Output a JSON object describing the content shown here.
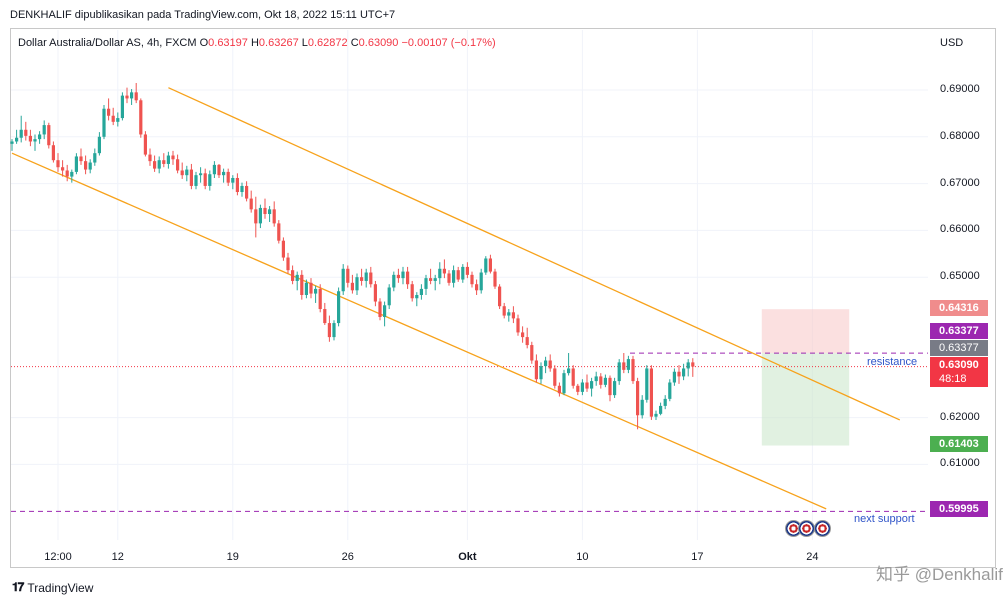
{
  "header": {
    "publish_line": "DENKHALIF dipublikasikan pada TradingView.com, Okt 18, 2022 15:11 UTC+7"
  },
  "legend": {
    "symbol": "Dollar Australia/Dollar AS, 4h, FXCM",
    "o_label": "O",
    "o_value": "0.63197",
    "h_label": "H",
    "h_value": "0.63267",
    "l_label": "L",
    "l_value": "0.62872",
    "c_label": "C",
    "c_value": "0.63090",
    "change": "−0.00107 (−0.17%)"
  },
  "axis": {
    "currency": "USD"
  },
  "annotations": {
    "resistance": "resistance",
    "next_support": "next support"
  },
  "price_tags": {
    "take_profit_top": "0.64316",
    "resistance_tag": "0.63377",
    "resistance_gray": "0.63377",
    "last_price": "0.63090",
    "countdown": "48:18",
    "stop_bottom": "0.61403",
    "support": "0.59995"
  },
  "footer": {
    "brand": "TradingView",
    "watermark": "知乎 @Denkhalif"
  },
  "colors": {
    "up": "#26a69a",
    "down": "#ef5350",
    "channel": "#f7a21b",
    "dashed_purple": "#9c27b0",
    "last_price": "#f23645"
  },
  "chart_data": {
    "type": "candlestick",
    "title": "Dollar Australia/Dollar AS, 4h, FXCM",
    "ylabel": "USD",
    "ylim": [
      0.596,
      0.6985
    ],
    "y_ticks": [
      "0.69000",
      "0.68000",
      "0.67000",
      "0.66000",
      "0.65000",
      "0.62000",
      "0.61000"
    ],
    "x_ticks": [
      "12:00",
      "12",
      "19",
      "26",
      "Okt",
      "10",
      "17",
      "24"
    ],
    "x_tick_index": [
      10,
      23,
      48,
      73,
      99,
      124,
      149,
      174
    ],
    "levels": {
      "resistance": 0.63377,
      "support": 0.59995,
      "last": 0.6309,
      "tp_top": 0.64316,
      "sl_bottom": 0.61403
    },
    "channel_upper": [
      [
        34,
        0.6905
      ],
      [
        193,
        0.6195
      ]
    ],
    "channel_lower": [
      [
        0,
        0.6765
      ],
      [
        177,
        0.6005
      ]
    ],
    "position_box": {
      "x_start": 163,
      "x_end": 182
    },
    "candles": [
      [
        0.6785,
        0.6795,
        0.677,
        0.679
      ],
      [
        0.679,
        0.6815,
        0.6785,
        0.6798
      ],
      [
        0.6798,
        0.6845,
        0.6788,
        0.6815
      ],
      [
        0.6815,
        0.6832,
        0.6792,
        0.6802
      ],
      [
        0.6802,
        0.6815,
        0.678,
        0.679
      ],
      [
        0.679,
        0.6805,
        0.677,
        0.6795
      ],
      [
        0.6795,
        0.6812,
        0.6785,
        0.6805
      ],
      [
        0.6805,
        0.6835,
        0.6795,
        0.6825
      ],
      [
        0.6825,
        0.683,
        0.6775,
        0.6782
      ],
      [
        0.6782,
        0.679,
        0.6745,
        0.675
      ],
      [
        0.675,
        0.6765,
        0.6725,
        0.6735
      ],
      [
        0.6735,
        0.675,
        0.6715,
        0.6728
      ],
      [
        0.6728,
        0.674,
        0.6705,
        0.6715
      ],
      [
        0.6715,
        0.673,
        0.6702,
        0.6725
      ],
      [
        0.6725,
        0.6765,
        0.672,
        0.6758
      ],
      [
        0.6758,
        0.6775,
        0.674,
        0.6748
      ],
      [
        0.6748,
        0.676,
        0.672,
        0.673
      ],
      [
        0.673,
        0.6752,
        0.6722,
        0.6745
      ],
      [
        0.6745,
        0.6775,
        0.6738,
        0.6765
      ],
      [
        0.6765,
        0.681,
        0.676,
        0.68
      ],
      [
        0.68,
        0.6868,
        0.6795,
        0.686
      ],
      [
        0.686,
        0.6882,
        0.6835,
        0.6845
      ],
      [
        0.6845,
        0.6862,
        0.6825,
        0.6832
      ],
      [
        0.6832,
        0.6852,
        0.6822,
        0.684
      ],
      [
        0.684,
        0.6895,
        0.6835,
        0.6888
      ],
      [
        0.6888,
        0.6905,
        0.6872,
        0.6882
      ],
      [
        0.6882,
        0.6902,
        0.6868,
        0.6895
      ],
      [
        0.6895,
        0.6915,
        0.6872,
        0.6878
      ],
      [
        0.6878,
        0.6882,
        0.6798,
        0.6805
      ],
      [
        0.6805,
        0.6812,
        0.6758,
        0.6762
      ],
      [
        0.6762,
        0.6775,
        0.6738,
        0.6748
      ],
      [
        0.6748,
        0.676,
        0.6725,
        0.6732
      ],
      [
        0.6732,
        0.6758,
        0.6722,
        0.675
      ],
      [
        0.675,
        0.6765,
        0.6735,
        0.6742
      ],
      [
        0.6742,
        0.6768,
        0.6732,
        0.676
      ],
      [
        0.676,
        0.677,
        0.674,
        0.6752
      ],
      [
        0.6752,
        0.6762,
        0.6722,
        0.6728
      ],
      [
        0.6728,
        0.6745,
        0.671,
        0.6718
      ],
      [
        0.6718,
        0.6738,
        0.6705,
        0.673
      ],
      [
        0.673,
        0.6742,
        0.6688,
        0.6695
      ],
      [
        0.6695,
        0.6725,
        0.6688,
        0.6718
      ],
      [
        0.6718,
        0.6735,
        0.6702,
        0.6722
      ],
      [
        0.6722,
        0.6732,
        0.6688,
        0.6695
      ],
      [
        0.6695,
        0.6728,
        0.6685,
        0.672
      ],
      [
        0.672,
        0.6748,
        0.6712,
        0.674
      ],
      [
        0.674,
        0.6742,
        0.6712,
        0.6718
      ],
      [
        0.6718,
        0.6732,
        0.6702,
        0.6725
      ],
      [
        0.6725,
        0.6732,
        0.6695,
        0.6702
      ],
      [
        0.6702,
        0.6718,
        0.6688,
        0.6712
      ],
      [
        0.6712,
        0.6722,
        0.6675,
        0.6682
      ],
      [
        0.6682,
        0.6702,
        0.6672,
        0.6695
      ],
      [
        0.6695,
        0.6705,
        0.6662,
        0.6668
      ],
      [
        0.6668,
        0.6685,
        0.6638,
        0.6645
      ],
      [
        0.6645,
        0.6672,
        0.6585,
        0.6615
      ],
      [
        0.6615,
        0.6655,
        0.6605,
        0.6648
      ],
      [
        0.6648,
        0.6668,
        0.6625,
        0.6635
      ],
      [
        0.6635,
        0.6652,
        0.6618,
        0.6645
      ],
      [
        0.6645,
        0.6662,
        0.6608,
        0.6615
      ],
      [
        0.6615,
        0.6622,
        0.6572,
        0.6578
      ],
      [
        0.6578,
        0.6585,
        0.6535,
        0.6542
      ],
      [
        0.6542,
        0.6552,
        0.6508,
        0.6515
      ],
      [
        0.6515,
        0.6525,
        0.6485,
        0.6492
      ],
      [
        0.6492,
        0.6512,
        0.6472,
        0.6505
      ],
      [
        0.6505,
        0.6515,
        0.6452,
        0.6462
      ],
      [
        0.6462,
        0.6495,
        0.6455,
        0.6488
      ],
      [
        0.6488,
        0.6498,
        0.6455,
        0.6465
      ],
      [
        0.6465,
        0.6482,
        0.6445,
        0.6475
      ],
      [
        0.6475,
        0.6485,
        0.6425,
        0.6432
      ],
      [
        0.6432,
        0.6445,
        0.6398,
        0.6402
      ],
      [
        0.6402,
        0.6418,
        0.6362,
        0.6372
      ],
      [
        0.6372,
        0.6408,
        0.6365,
        0.6402
      ],
      [
        0.6402,
        0.6478,
        0.6395,
        0.647
      ],
      [
        0.647,
        0.6528,
        0.6462,
        0.6518
      ],
      [
        0.6518,
        0.6525,
        0.6478,
        0.6488
      ],
      [
        0.6488,
        0.6505,
        0.6465,
        0.6472
      ],
      [
        0.6472,
        0.6508,
        0.6462,
        0.65
      ],
      [
        0.65,
        0.6518,
        0.6482,
        0.6492
      ],
      [
        0.6492,
        0.6518,
        0.6478,
        0.651
      ],
      [
        0.651,
        0.6522,
        0.6478,
        0.6485
      ],
      [
        0.6485,
        0.6492,
        0.6438,
        0.6448
      ],
      [
        0.6448,
        0.6455,
        0.6408,
        0.6415
      ],
      [
        0.6415,
        0.6448,
        0.6395,
        0.644
      ],
      [
        0.644,
        0.6485,
        0.6432,
        0.6478
      ],
      [
        0.6478,
        0.6512,
        0.647,
        0.6505
      ],
      [
        0.6505,
        0.6518,
        0.6488,
        0.6498
      ],
      [
        0.6498,
        0.6522,
        0.6485,
        0.6512
      ],
      [
        0.6512,
        0.6522,
        0.6475,
        0.6485
      ],
      [
        0.6485,
        0.6492,
        0.6448,
        0.6455
      ],
      [
        0.6455,
        0.6468,
        0.6438,
        0.6462
      ],
      [
        0.6462,
        0.6485,
        0.6452,
        0.6475
      ],
      [
        0.6475,
        0.6505,
        0.6462,
        0.6498
      ],
      [
        0.6498,
        0.6518,
        0.6485,
        0.6492
      ],
      [
        0.6492,
        0.6505,
        0.6472,
        0.6498
      ],
      [
        0.6498,
        0.6532,
        0.6485,
        0.6518
      ],
      [
        0.6518,
        0.6538,
        0.6498,
        0.6508
      ],
      [
        0.6508,
        0.6515,
        0.6482,
        0.6488
      ],
      [
        0.6488,
        0.6525,
        0.6478,
        0.6515
      ],
      [
        0.6515,
        0.6522,
        0.649,
        0.6495
      ],
      [
        0.6495,
        0.6528,
        0.6488,
        0.6522
      ],
      [
        0.6522,
        0.6532,
        0.6498,
        0.6505
      ],
      [
        0.6505,
        0.6512,
        0.6478,
        0.6485
      ],
      [
        0.6485,
        0.6495,
        0.6462,
        0.6472
      ],
      [
        0.6472,
        0.6518,
        0.6465,
        0.651
      ],
      [
        0.651,
        0.6545,
        0.6505,
        0.654
      ],
      [
        0.654,
        0.6548,
        0.6508,
        0.6512
      ],
      [
        0.6512,
        0.6518,
        0.6475,
        0.648
      ],
      [
        0.648,
        0.6485,
        0.6432,
        0.6438
      ],
      [
        0.6438,
        0.6445,
        0.6412,
        0.6418
      ],
      [
        0.6418,
        0.6432,
        0.6405,
        0.6425
      ],
      [
        0.6425,
        0.6438,
        0.6402,
        0.6412
      ],
      [
        0.6412,
        0.642,
        0.6375,
        0.6382
      ],
      [
        0.6382,
        0.6395,
        0.636,
        0.6372
      ],
      [
        0.6372,
        0.6392,
        0.6348,
        0.6355
      ],
      [
        0.6355,
        0.6362,
        0.6315,
        0.6322
      ],
      [
        0.6322,
        0.6335,
        0.6275,
        0.6282
      ],
      [
        0.6282,
        0.6318,
        0.6272,
        0.631
      ],
      [
        0.631,
        0.633,
        0.6295,
        0.6322
      ],
      [
        0.6322,
        0.6335,
        0.6298,
        0.6305
      ],
      [
        0.6305,
        0.6312,
        0.6262,
        0.6268
      ],
      [
        0.6268,
        0.6275,
        0.6245,
        0.6252
      ],
      [
        0.6252,
        0.6302,
        0.6248,
        0.6295
      ],
      [
        0.6295,
        0.6338,
        0.629,
        0.6305
      ],
      [
        0.6305,
        0.6312,
        0.6262,
        0.6268
      ],
      [
        0.6268,
        0.6272,
        0.6248,
        0.6255
      ],
      [
        0.6255,
        0.6282,
        0.6248,
        0.6275
      ],
      [
        0.6275,
        0.6292,
        0.6255,
        0.6262
      ],
      [
        0.6262,
        0.6285,
        0.6245,
        0.6278
      ],
      [
        0.6278,
        0.6298,
        0.6268,
        0.6288
      ],
      [
        0.6288,
        0.6295,
        0.6262,
        0.627
      ],
      [
        0.627,
        0.6292,
        0.6265,
        0.6285
      ],
      [
        0.6285,
        0.629,
        0.6235,
        0.6248
      ],
      [
        0.6248,
        0.6285,
        0.6242,
        0.6278
      ],
      [
        0.6278,
        0.6325,
        0.627,
        0.6318
      ],
      [
        0.6318,
        0.6338,
        0.6295,
        0.6302
      ],
      [
        0.6302,
        0.6332,
        0.6295,
        0.6325
      ],
      [
        0.6325,
        0.6332,
        0.6272,
        0.6278
      ],
      [
        0.6278,
        0.6285,
        0.6175,
        0.6205
      ],
      [
        0.6205,
        0.6248,
        0.6198,
        0.6238
      ],
      [
        0.6238,
        0.6312,
        0.6232,
        0.6305
      ],
      [
        0.6305,
        0.6312,
        0.6195,
        0.6202
      ],
      [
        0.6202,
        0.6215,
        0.6195,
        0.6208
      ],
      [
        0.6208,
        0.6232,
        0.6205,
        0.6225
      ],
      [
        0.6225,
        0.6248,
        0.6218,
        0.624
      ],
      [
        0.624,
        0.6282,
        0.6235,
        0.6275
      ],
      [
        0.6275,
        0.6305,
        0.6268,
        0.6298
      ],
      [
        0.6298,
        0.6312,
        0.6272,
        0.6288
      ],
      [
        0.6288,
        0.6315,
        0.628,
        0.6305
      ],
      [
        0.6305,
        0.6325,
        0.6288,
        0.6318
      ],
      [
        0.6318,
        0.6327,
        0.6287,
        0.6309
      ]
    ]
  }
}
